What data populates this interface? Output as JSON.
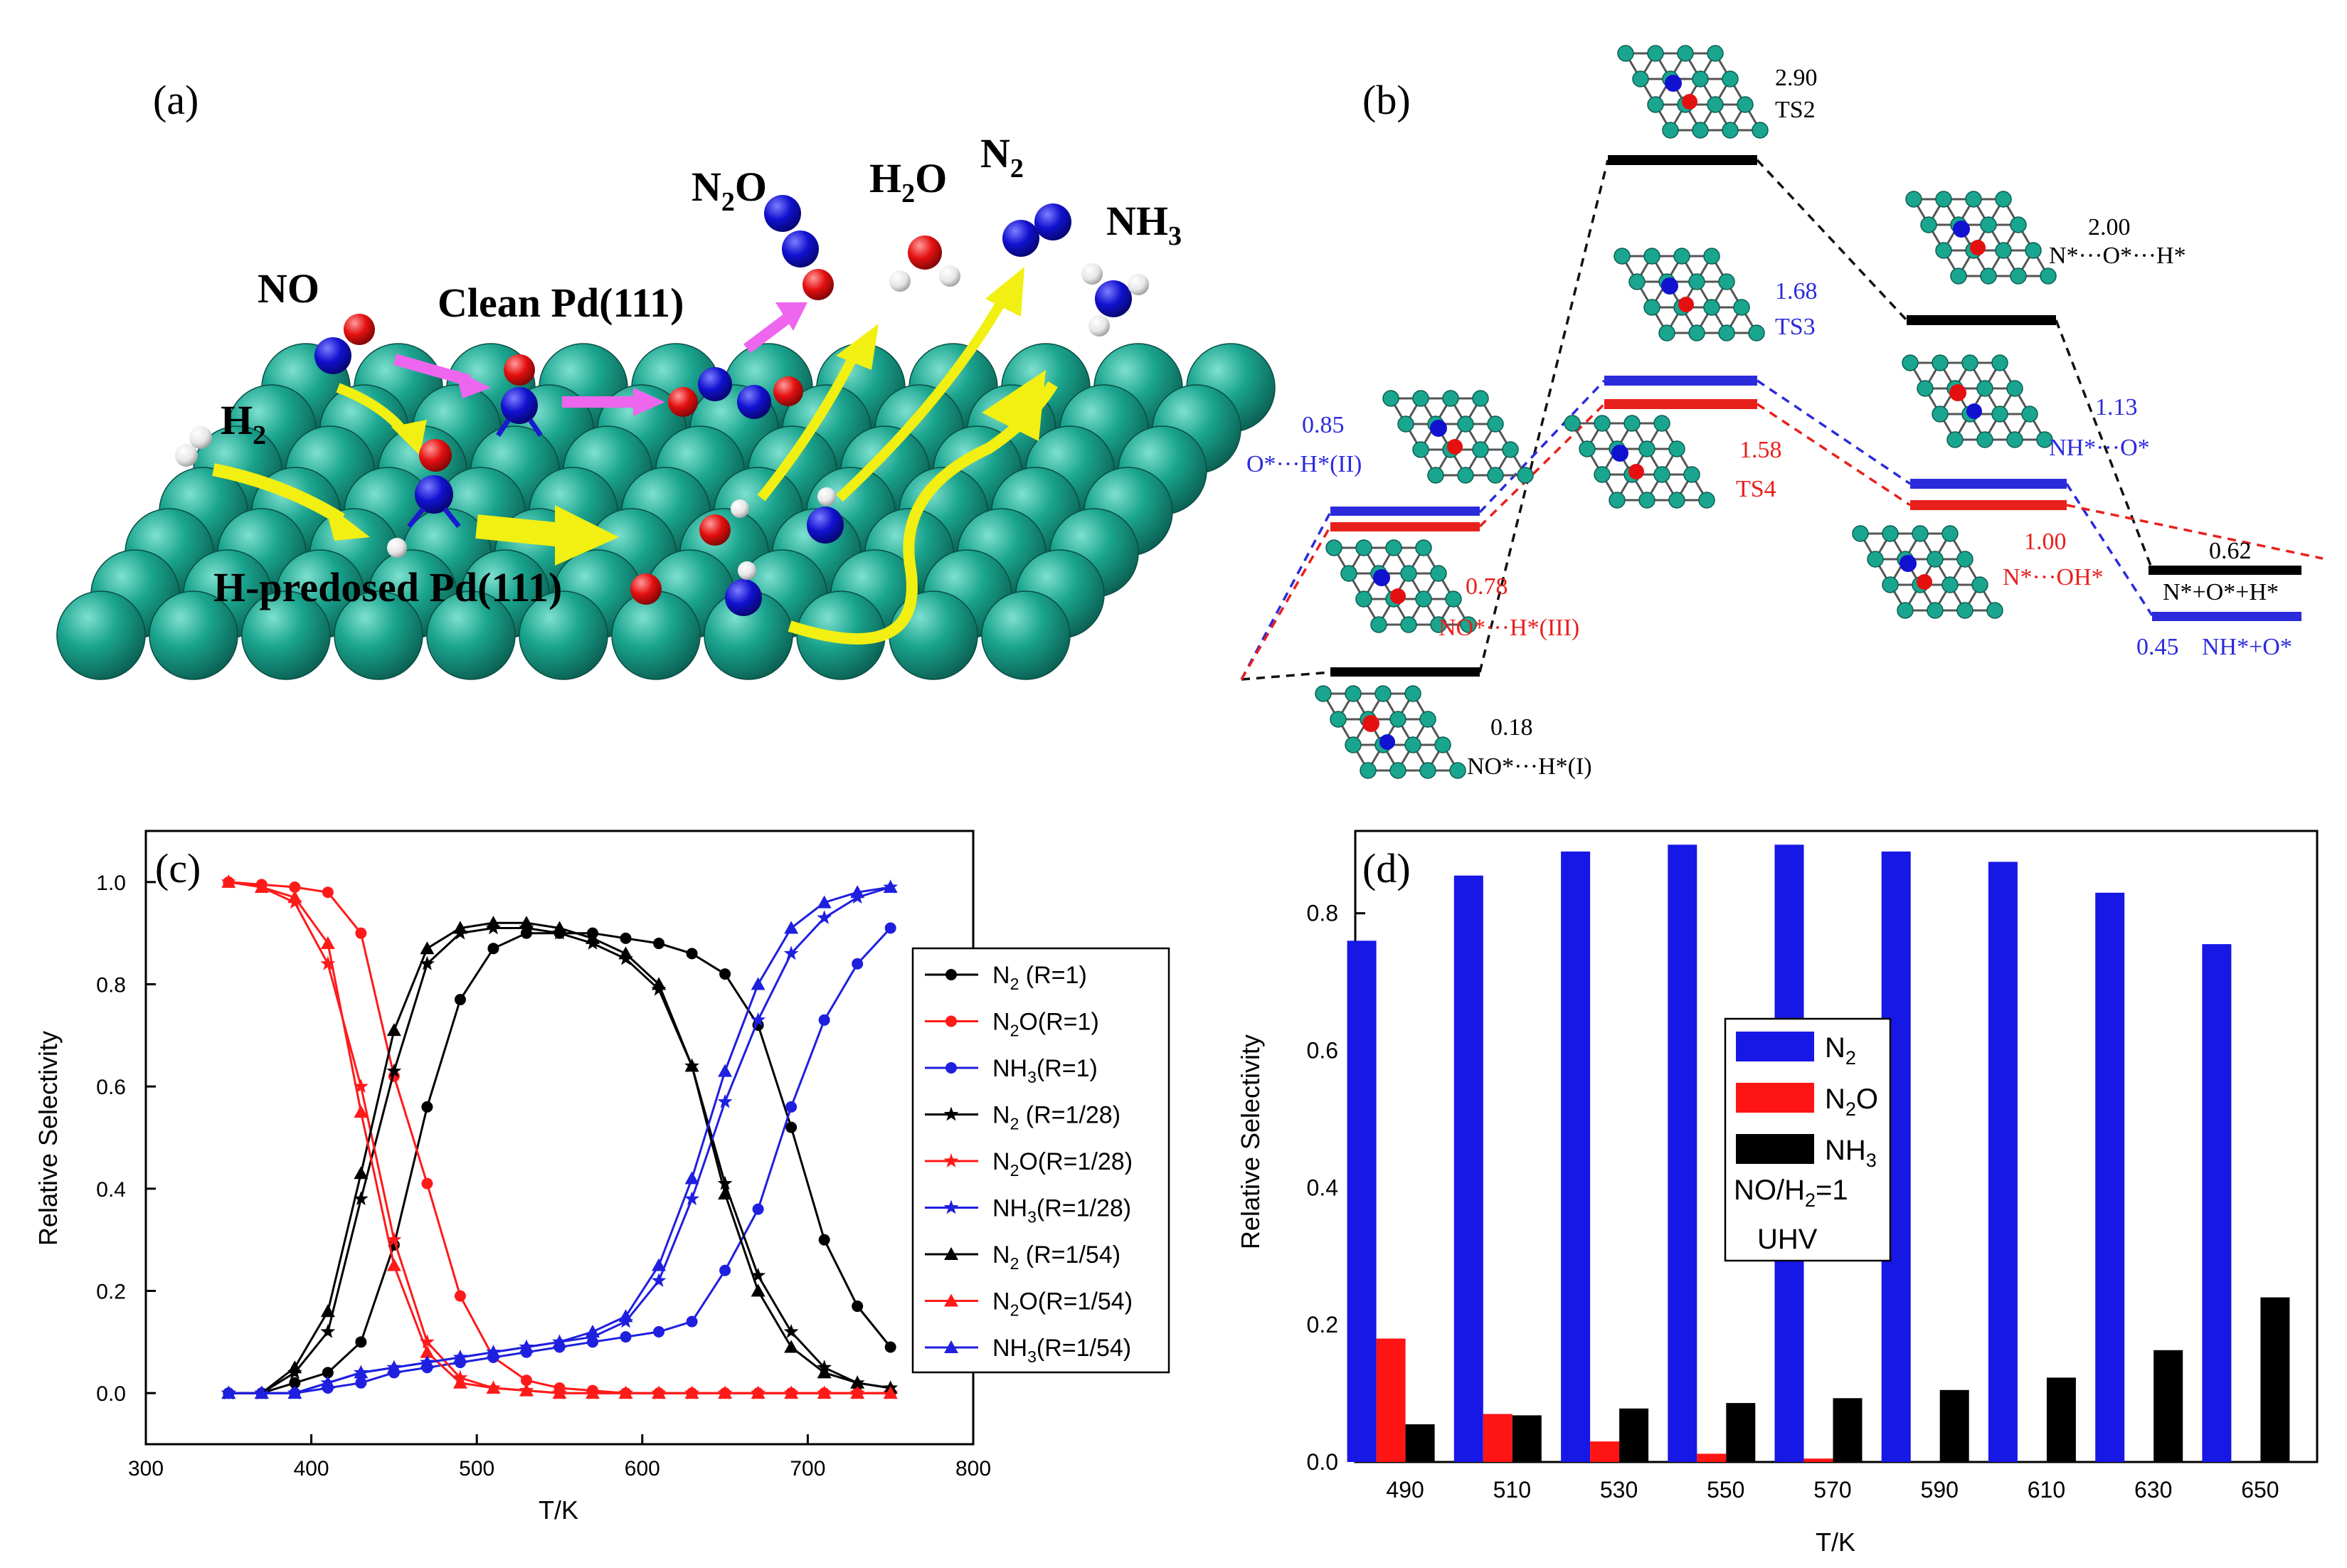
{
  "panels": {
    "a": {
      "label": "(a)",
      "no": "NO",
      "h2": "H",
      "h2_sub": "2",
      "clean": "Clean Pd(111)",
      "hpre": "H-predosed Pd(111)",
      "n2o_a": "N",
      "n2o_sub": "2",
      "n2o_b": "O",
      "h2o_a": "H",
      "h2o_sub": "2",
      "h2o_b": "O",
      "n2_a": "N",
      "n2_sub": "2",
      "nh3_a": "NH",
      "nh3_sub": "3"
    },
    "b": {
      "label": "(b)",
      "levels": [
        {
          "value": "2.90",
          "name": "TS2",
          "color": "#000000"
        },
        {
          "value": "2.00",
          "name": "N*···O*···H*",
          "color": "#000000"
        },
        {
          "value": "1.68",
          "name": "TS3",
          "color": "#2b2bdc"
        },
        {
          "value": "0.85",
          "name": "O*···H*(II)",
          "color": "#2b2bdc"
        },
        {
          "value": "1.13",
          "name": "NH*···O*",
          "color": "#2b2bdc"
        },
        {
          "value": "1.58",
          "name": "TS4",
          "color": "#e8201c"
        },
        {
          "value": "0.78",
          "name": "NO*···H*(III)",
          "color": "#e8201c"
        },
        {
          "value": "1.00",
          "name": "N*···OH*",
          "color": "#e8201c"
        },
        {
          "value": "0.62",
          "name": "N*+O*+H*",
          "color": "#000000"
        },
        {
          "value": "0.45",
          "name": "NH*+O*",
          "color": "#2b2bdc"
        },
        {
          "value": "0.18",
          "name": "NO*···H*(I)",
          "color": "#000000"
        }
      ]
    },
    "c": {
      "label": "(c)"
    },
    "d": {
      "label": "(d)",
      "note1": "NO/H",
      "note1_sub": "2",
      "note1_tail": "=1",
      "note2": "UHV"
    }
  },
  "colors": {
    "n2": "#000000",
    "n2o": "#ff1a1a",
    "nh3": "#1f1fe0",
    "bar_n2": "#1717e6",
    "bar_n2o": "#ff1414",
    "bar_nh3": "#000000",
    "pd": "#1aa58f"
  },
  "chart_data": [
    {
      "type": "line",
      "title": "(c)",
      "xlabel": "T/K",
      "ylabel": "Relative Selectivity",
      "xlim": [
        300,
        800
      ],
      "ylim": [
        -0.1,
        1.1
      ],
      "xticks": [
        300,
        400,
        500,
        600,
        700,
        800
      ],
      "yticks": [
        0.0,
        0.2,
        0.4,
        0.6,
        0.8,
        1.0
      ],
      "x": [
        350,
        370,
        390,
        410,
        430,
        450,
        470,
        490,
        510,
        530,
        550,
        570,
        590,
        610,
        630,
        650,
        670,
        690,
        710,
        730,
        750
      ],
      "series": [
        {
          "name": "N2 (R=1)",
          "label_a": "N",
          "sub": "2",
          "label_b": "  (R=1)",
          "color": "#000000",
          "marker": "circle",
          "values": [
            0.0,
            0.0,
            0.02,
            0.04,
            0.1,
            0.29,
            0.56,
            0.77,
            0.87,
            0.9,
            0.9,
            0.9,
            0.89,
            0.88,
            0.86,
            0.82,
            0.72,
            0.52,
            0.3,
            0.17,
            0.09
          ]
        },
        {
          "name": "N2O(R=1)",
          "label_a": "N",
          "sub": "2",
          "label_b": "O(R=1)",
          "color": "#ff1a1a",
          "marker": "circle",
          "values": [
            1.0,
            0.995,
            0.99,
            0.98,
            0.9,
            0.62,
            0.41,
            0.19,
            0.07,
            0.025,
            0.01,
            0.005,
            0.0,
            0.0,
            0.0,
            0.0,
            0.0,
            0.0,
            0.0,
            0.0,
            0.0
          ]
        },
        {
          "name": "NH3(R=1)",
          "label_a": "NH",
          "sub": "3",
          "label_b": "(R=1)",
          "color": "#1f1fe0",
          "marker": "circle",
          "values": [
            0.0,
            0.0,
            0.0,
            0.01,
            0.02,
            0.04,
            0.05,
            0.06,
            0.07,
            0.08,
            0.09,
            0.1,
            0.11,
            0.12,
            0.14,
            0.24,
            0.36,
            0.56,
            0.73,
            0.84,
            0.91
          ]
        },
        {
          "name": "N2 (R=1/28)",
          "label_a": "N",
          "sub": "2",
          "label_b": "  (R=1/28)",
          "color": "#000000",
          "marker": "star",
          "values": [
            0.0,
            0.0,
            0.04,
            0.12,
            0.38,
            0.63,
            0.84,
            0.9,
            0.91,
            0.91,
            0.9,
            0.88,
            0.85,
            0.79,
            0.64,
            0.41,
            0.23,
            0.12,
            0.05,
            0.02,
            0.01
          ]
        },
        {
          "name": "N2O(R=1/28)",
          "label_a": "N",
          "sub": "2",
          "label_b": "O(R=1/28)",
          "color": "#ff1a1a",
          "marker": "star",
          "values": [
            1.0,
            0.99,
            0.96,
            0.84,
            0.6,
            0.3,
            0.1,
            0.03,
            0.01,
            0.005,
            0.0,
            0.0,
            0.0,
            0.0,
            0.0,
            0.0,
            0.0,
            0.0,
            0.0,
            0.0,
            0.0
          ]
        },
        {
          "name": "NH3(R=1/28)",
          "label_a": "NH",
          "sub": "3",
          "label_b": "(R=1/28)",
          "color": "#1f1fe0",
          "marker": "star",
          "values": [
            0.0,
            0.0,
            0.0,
            0.02,
            0.04,
            0.05,
            0.06,
            0.07,
            0.08,
            0.09,
            0.1,
            0.11,
            0.14,
            0.22,
            0.38,
            0.57,
            0.73,
            0.86,
            0.93,
            0.97,
            0.99
          ]
        },
        {
          "name": "N2 (R=1/54)",
          "label_a": "N",
          "sub": "2",
          "label_b": "  (R=1/54)",
          "color": "#000000",
          "marker": "triangle",
          "values": [
            0.0,
            0.0,
            0.05,
            0.16,
            0.43,
            0.71,
            0.87,
            0.91,
            0.92,
            0.92,
            0.91,
            0.89,
            0.86,
            0.8,
            0.64,
            0.39,
            0.2,
            0.09,
            0.04,
            0.02,
            0.01
          ]
        },
        {
          "name": "N2O(R=1/54)",
          "label_a": "N",
          "sub": "2",
          "label_b": "O(R=1/54)",
          "color": "#ff1a1a",
          "marker": "triangle",
          "values": [
            1.0,
            0.99,
            0.97,
            0.88,
            0.55,
            0.25,
            0.08,
            0.02,
            0.01,
            0.005,
            0.0,
            0.0,
            0.0,
            0.0,
            0.0,
            0.0,
            0.0,
            0.0,
            0.0,
            0.0,
            0.0
          ]
        },
        {
          "name": "NH3(R=1/54)",
          "label_a": "NH",
          "sub": "3",
          "label_b": "(R=1/54)",
          "color": "#1f1fe0",
          "marker": "triangle",
          "values": [
            0.0,
            0.0,
            0.0,
            0.02,
            0.04,
            0.05,
            0.06,
            0.07,
            0.08,
            0.09,
            0.1,
            0.12,
            0.15,
            0.25,
            0.42,
            0.63,
            0.8,
            0.91,
            0.96,
            0.98,
            0.99
          ]
        }
      ]
    },
    {
      "type": "bar",
      "title": "(d)",
      "xlabel": "T/K",
      "ylabel": "Relative Selectivity",
      "ylim": [
        0.0,
        0.92
      ],
      "yticks": [
        0.0,
        0.2,
        0.4,
        0.6,
        0.8
      ],
      "categories": [
        "490",
        "510",
        "530",
        "550",
        "570",
        "590",
        "610",
        "630",
        "650"
      ],
      "series": [
        {
          "name": "N2",
          "label_a": "N",
          "sub": "2",
          "color": "#1717e6",
          "values": [
            0.76,
            0.855,
            0.89,
            0.9,
            0.9,
            0.89,
            0.875,
            0.83,
            0.755
          ]
        },
        {
          "name": "N2O",
          "label_a": "N",
          "sub": "2",
          "label_b": "O",
          "color": "#ff1414",
          "values": [
            0.18,
            0.07,
            0.03,
            0.012,
            0.005,
            0.0,
            0.0,
            0.0,
            0.0
          ]
        },
        {
          "name": "NH3",
          "label_a": "NH",
          "sub": "3",
          "color": "#000000",
          "values": [
            0.055,
            0.068,
            0.078,
            0.086,
            0.093,
            0.105,
            0.123,
            0.163,
            0.24
          ]
        }
      ]
    }
  ]
}
